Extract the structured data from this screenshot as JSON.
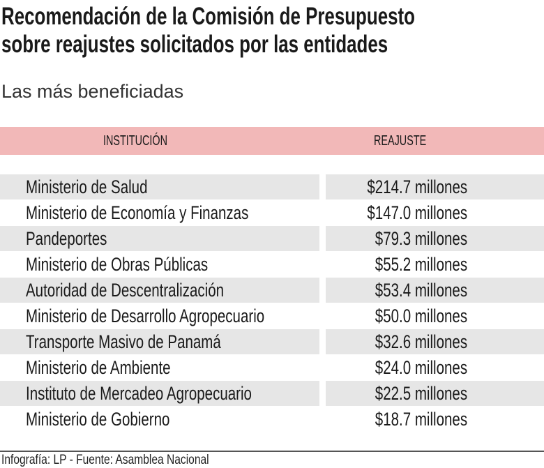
{
  "title_line1": "Recomendación de la Comisión de Presupuesto",
  "title_line2": "sobre reajustes solicitados por las entidades",
  "subtitle": "Las más beneficiadas",
  "colors": {
    "header_bg": "#f2b8b8",
    "row_shade": "#e6e6e6"
  },
  "footer": "Infografía: LP - Fuente: Asamblea Nacional",
  "chart_data": {
    "type": "table",
    "columns": [
      "INSTITUCIÓN",
      "REAJUSTE"
    ],
    "rows": [
      {
        "institucion": "Ministerio de Salud",
        "reajuste": "$214.7 millones"
      },
      {
        "institucion": "Ministerio de Economía y Finanzas",
        "reajuste": "$147.0 millones"
      },
      {
        "institucion": "Pandeportes",
        "reajuste": "$79.3 millones"
      },
      {
        "institucion": "Ministerio de Obras Públicas",
        "reajuste": "$55.2 millones"
      },
      {
        "institucion": "Autoridad de Descentralización",
        "reajuste": "$53.4 millones"
      },
      {
        "institucion": "Ministerio de Desarrollo Agropecuario",
        "reajuste": "$50.0 millones"
      },
      {
        "institucion": "Transporte Masivo de Panamá",
        "reajuste": "$32.6 millones"
      },
      {
        "institucion": "Ministerio de Ambiente",
        "reajuste": "$24.0 millones"
      },
      {
        "institucion": "Instituto de Mercadeo Agropecuario",
        "reajuste": "$22.5 millones"
      },
      {
        "institucion": "Ministerio de Gobierno",
        "reajuste": "$18.7 millones"
      }
    ]
  }
}
